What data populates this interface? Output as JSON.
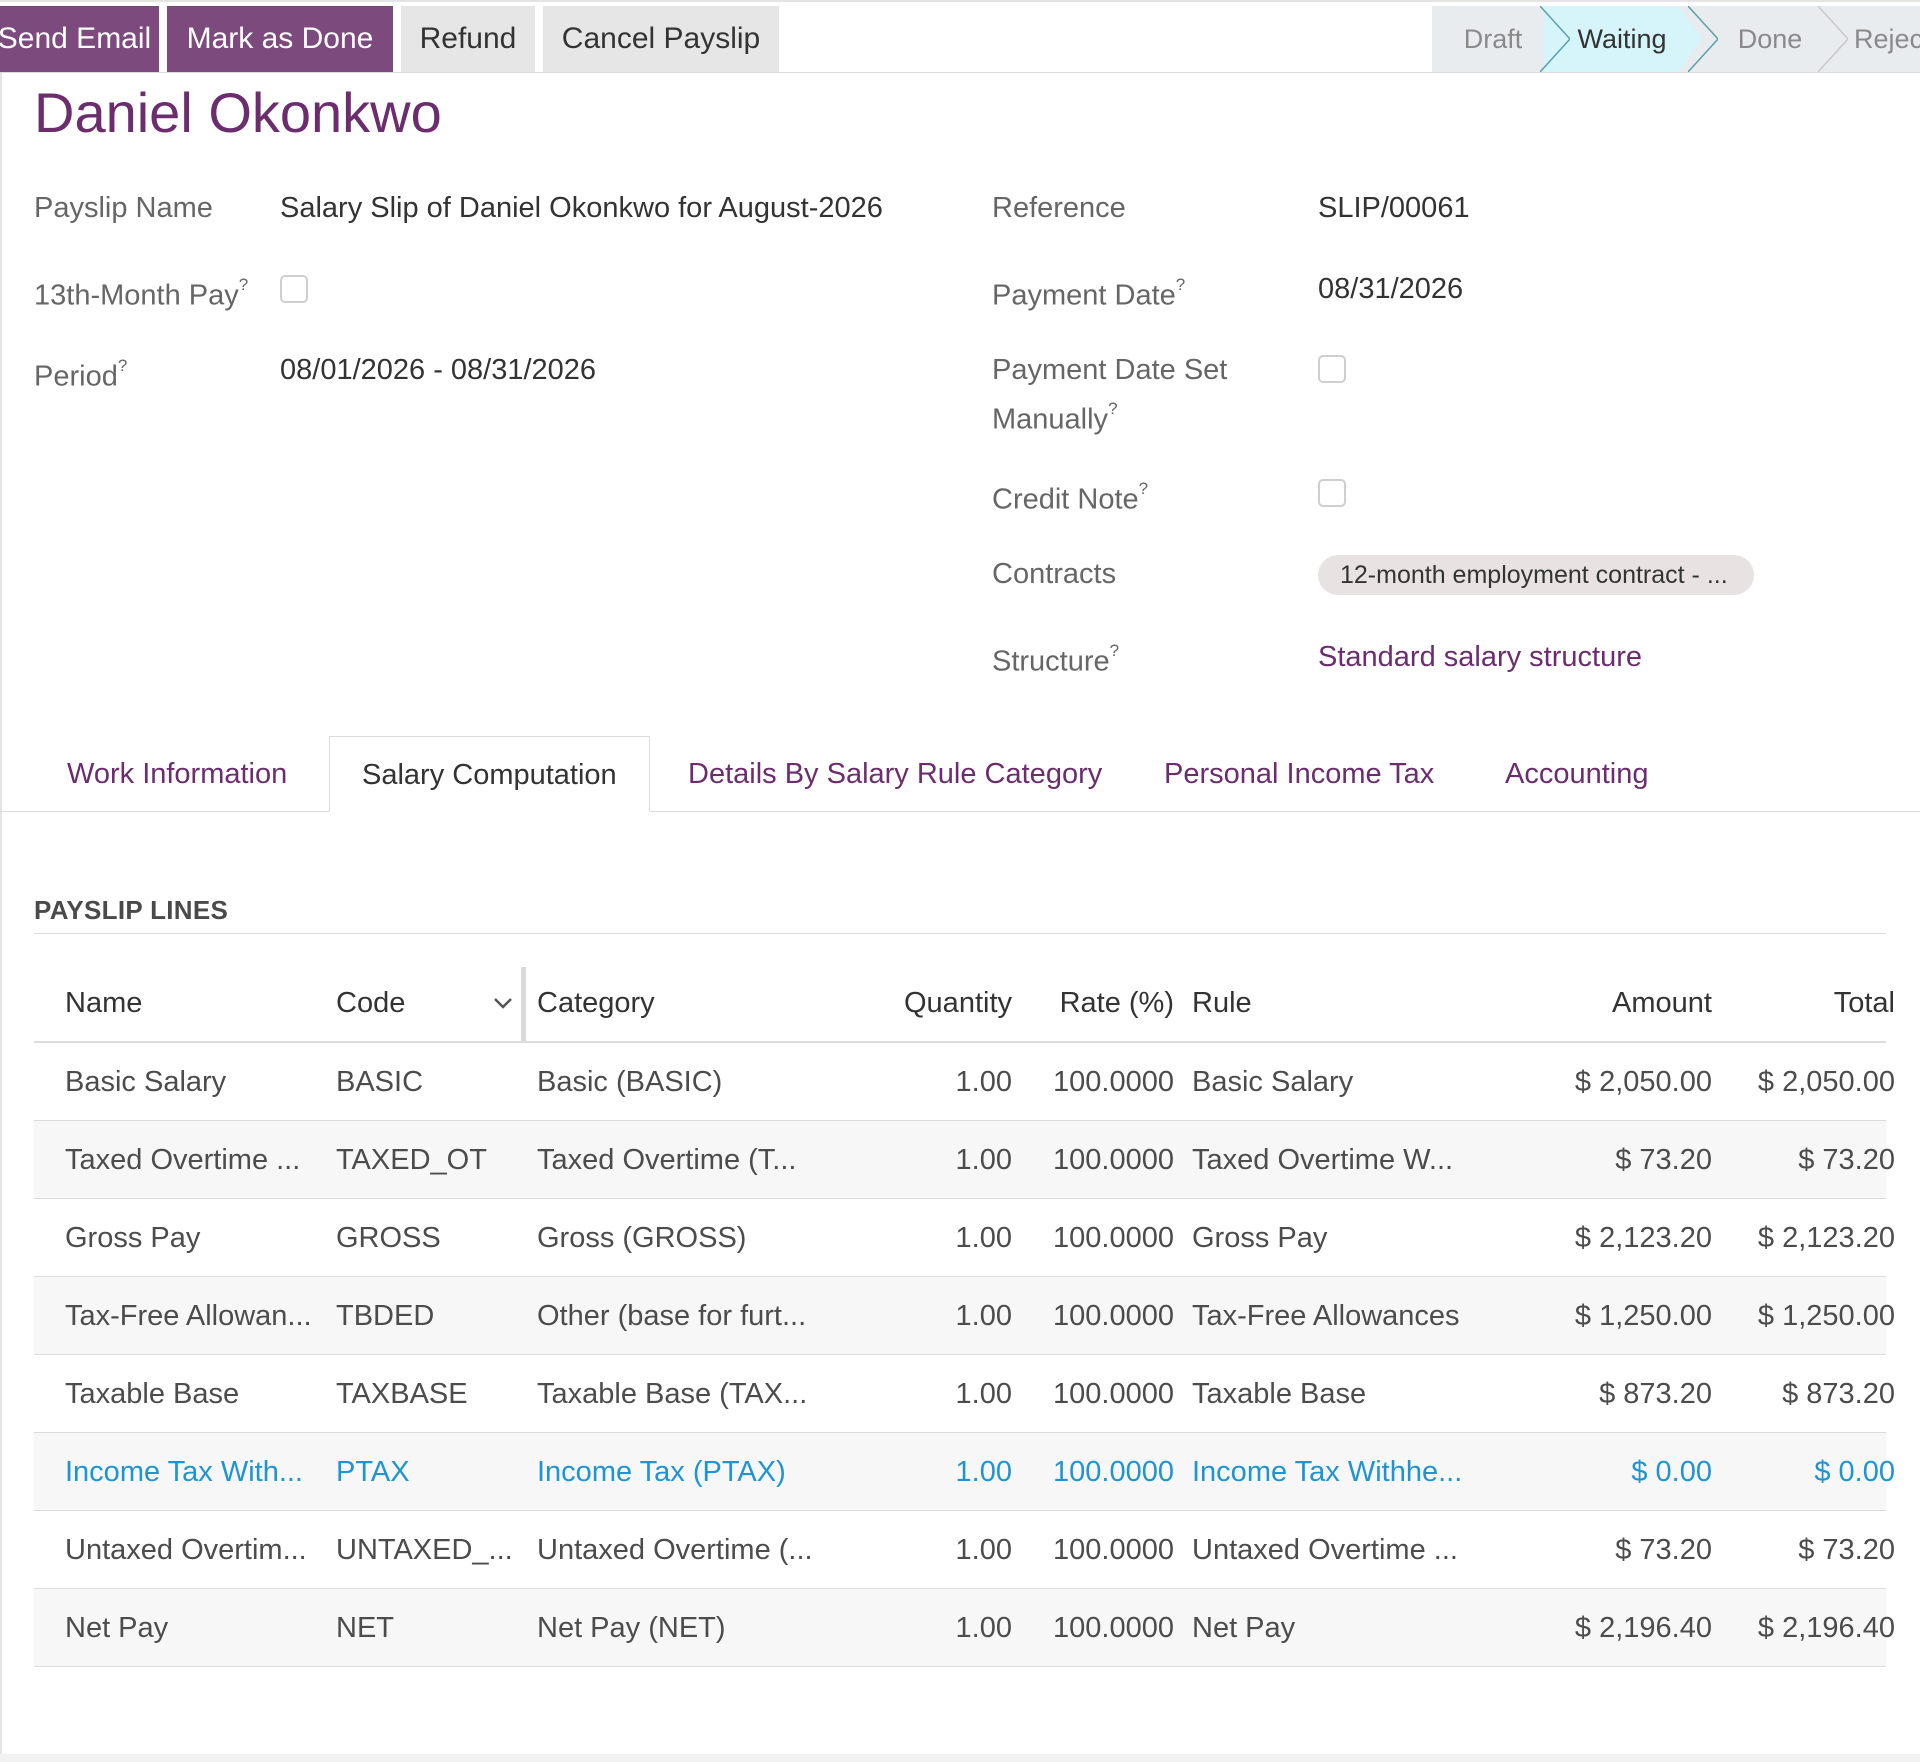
{
  "toolbar": {
    "send_email": "Send Email",
    "mark_done": "Mark as Done",
    "refund": "Refund",
    "cancel": "Cancel Payslip"
  },
  "statusbar": {
    "stages": [
      "Draft",
      "Waiting",
      "Done",
      "Rejected"
    ],
    "active": "Waiting"
  },
  "employee_name": "Daniel Okonkwo",
  "fields": {
    "payslip_name": {
      "label": "Payslip Name",
      "value": "Salary Slip of Daniel Okonkwo for August-2026"
    },
    "thirteenth_month": {
      "label": "13th-Month Pay",
      "help": "?",
      "checked": false
    },
    "period": {
      "label": "Period",
      "help": "?",
      "value": "08/01/2026 - 08/31/2026"
    },
    "reference": {
      "label": "Reference",
      "value": "SLIP/00061"
    },
    "payment_date": {
      "label": "Payment Date",
      "help": "?",
      "value": "08/31/2026"
    },
    "payment_date_manual": {
      "label_line1": "Payment Date Set",
      "label_line2": "Manually",
      "help": "?",
      "checked": false
    },
    "credit_note": {
      "label": "Credit Note",
      "help": "?",
      "checked": false
    },
    "contracts": {
      "label": "Contracts",
      "value": "12-month employment contract - ..."
    },
    "structure": {
      "label": "Structure",
      "help": "?",
      "value": "Standard salary structure"
    }
  },
  "tabs": [
    {
      "label": "Work Information"
    },
    {
      "label": "Salary Computation"
    },
    {
      "label": "Details By Salary Rule Category"
    },
    {
      "label": "Personal Income Tax"
    },
    {
      "label": "Accounting"
    }
  ],
  "active_tab": "Salary Computation",
  "section_title": "PAYSLIP LINES",
  "table": {
    "columns": [
      "Name",
      "Code",
      "Category",
      "Quantity",
      "Rate (%)",
      "Rule",
      "Amount",
      "Total"
    ],
    "rows": [
      [
        "Basic Salary",
        "BASIC",
        "Basic (BASIC)",
        "1.00",
        "100.0000",
        "Basic Salary",
        "$ 2,050.00",
        "$ 2,050.00"
      ],
      [
        "Taxed Overtime ...",
        "TAXED_OT",
        "Taxed Overtime (T...",
        "1.00",
        "100.0000",
        "Taxed Overtime W...",
        "$ 73.20",
        "$ 73.20"
      ],
      [
        "Gross Pay",
        "GROSS",
        "Gross (GROSS)",
        "1.00",
        "100.0000",
        "Gross Pay",
        "$ 2,123.20",
        "$ 2,123.20"
      ],
      [
        "Tax-Free Allowan...",
        "TBDED",
        "Other (base for furt...",
        "1.00",
        "100.0000",
        "Tax-Free Allowances",
        "$ 1,250.00",
        "$ 1,250.00"
      ],
      [
        "Taxable Base",
        "TAXBASE",
        "Taxable Base (TAX...",
        "1.00",
        "100.0000",
        "Taxable Base",
        "$ 873.20",
        "$ 873.20"
      ],
      [
        "Income Tax With...",
        "PTAX",
        "Income Tax (PTAX)",
        "1.00",
        "100.0000",
        "Income Tax Withhe...",
        "$ 0.00",
        "$ 0.00"
      ],
      [
        "Untaxed Overtim...",
        "UNTAXED_...",
        "Untaxed Overtime (...",
        "1.00",
        "100.0000",
        "Untaxed Overtime ...",
        "$ 73.20",
        "$ 73.20"
      ],
      [
        "Net Pay",
        "NET",
        "Net Pay (NET)",
        "1.00",
        "100.0000",
        "Net Pay",
        "$ 2,196.40",
        "$ 2,196.40"
      ]
    ]
  },
  "colors": {
    "primary": "#7c4a7d",
    "title": "#6b2d6e",
    "active_stage": "#d5f5fa",
    "highlight_row": "#1f94d2"
  }
}
